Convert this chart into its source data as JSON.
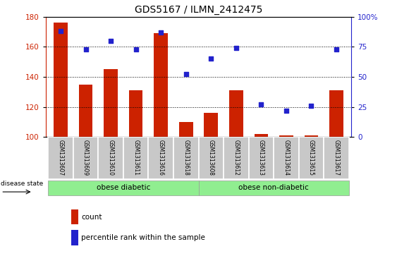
{
  "title": "GDS5167 / ILMN_2412475",
  "samples": [
    "GSM1313607",
    "GSM1313609",
    "GSM1313610",
    "GSM1313611",
    "GSM1313616",
    "GSM1313618",
    "GSM1313608",
    "GSM1313612",
    "GSM1313613",
    "GSM1313614",
    "GSM1313615",
    "GSM1313617"
  ],
  "counts": [
    176,
    135,
    145,
    131,
    169,
    110,
    116,
    131,
    102,
    101,
    101,
    131
  ],
  "percentile_ranks": [
    88,
    73,
    80,
    73,
    87,
    52,
    65,
    74,
    27,
    22,
    26,
    73
  ],
  "bar_color": "#cc2200",
  "dot_color": "#2222cc",
  "ylim_left": [
    100,
    180
  ],
  "ylim_right": [
    0,
    100
  ],
  "yticks_left": [
    100,
    120,
    140,
    160,
    180
  ],
  "yticks_right": [
    0,
    25,
    50,
    75,
    100
  ],
  "ytick_labels_right": [
    "0",
    "25",
    "50",
    "75",
    "100%"
  ],
  "group1_label": "obese diabetic",
  "group2_label": "obese non-diabetic",
  "group1_indices": [
    0,
    1,
    2,
    3,
    4,
    5
  ],
  "group2_indices": [
    6,
    7,
    8,
    9,
    10,
    11
  ],
  "disease_state_label": "disease state",
  "legend_count_label": "count",
  "legend_percentile_label": "percentile rank within the sample",
  "group_color": "#90ee90",
  "xticklabel_bg": "#c8c8c8",
  "bar_width": 0.55,
  "title_fontsize": 10
}
